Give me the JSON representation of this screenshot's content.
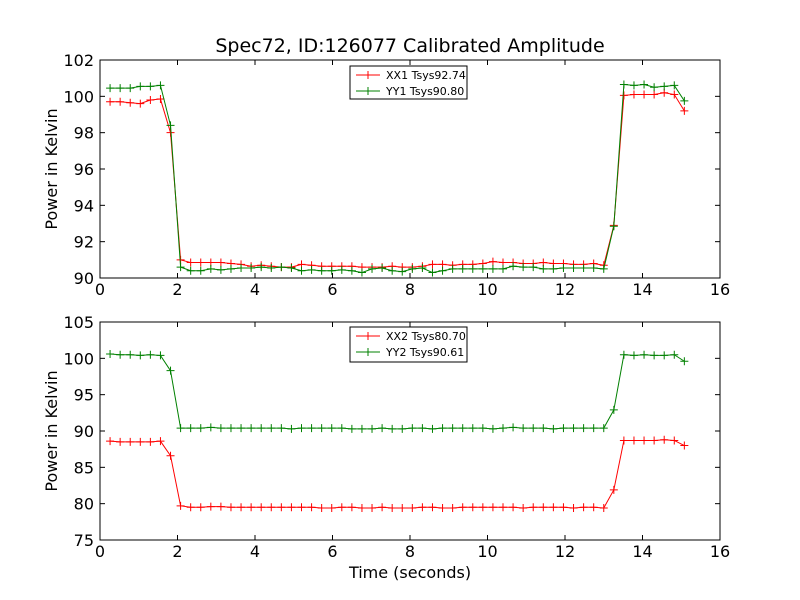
{
  "figure": {
    "title": "Spec72, ID:126077 Calibrated Amplitude"
  },
  "colors": {
    "xx": "#ff0000",
    "yy": "#008000",
    "axes": "#000000",
    "background": "#ffffff"
  },
  "chart_data": [
    {
      "type": "line",
      "title": "Spec72, ID:126077 Calibrated Amplitude",
      "xlabel": "",
      "ylabel": "Power in Kelvin",
      "xlim": [
        0,
        16
      ],
      "ylim": [
        90,
        102
      ],
      "xticks": [
        "0",
        "2",
        "4",
        "6",
        "8",
        "10",
        "12",
        "14",
        "16"
      ],
      "yticks": [
        "90",
        "92",
        "94",
        "96",
        "98",
        "100",
        "102"
      ],
      "grid": false,
      "legend_position": "upper-center",
      "x": [
        0.26,
        0.52,
        0.78,
        1.04,
        1.3,
        1.56,
        1.82,
        2.08,
        2.34,
        2.6,
        2.86,
        3.12,
        3.38,
        3.64,
        3.9,
        4.16,
        4.42,
        4.68,
        4.94,
        5.2,
        5.46,
        5.72,
        5.98,
        6.24,
        6.5,
        6.76,
        7.02,
        7.28,
        7.54,
        7.8,
        8.06,
        8.32,
        8.58,
        8.84,
        9.1,
        9.36,
        9.62,
        9.88,
        10.14,
        10.4,
        10.66,
        10.92,
        11.18,
        11.44,
        11.7,
        11.96,
        12.22,
        12.48,
        12.74,
        13.0,
        13.26,
        13.52,
        13.78,
        14.04,
        14.3,
        14.56,
        14.82,
        15.08
      ],
      "series": [
        {
          "name": "XX1 Tsys92.74",
          "color": "#ff0000",
          "values": [
            99.7,
            99.7,
            99.65,
            99.6,
            99.8,
            99.85,
            98.0,
            91.0,
            90.85,
            90.85,
            90.85,
            90.85,
            90.8,
            90.75,
            90.65,
            90.7,
            90.65,
            90.6,
            90.6,
            90.75,
            90.7,
            90.65,
            90.65,
            90.65,
            90.65,
            90.6,
            90.6,
            90.6,
            90.65,
            90.6,
            90.6,
            90.65,
            90.75,
            90.75,
            90.7,
            90.75,
            90.75,
            90.8,
            90.9,
            90.85,
            90.85,
            90.8,
            90.8,
            90.85,
            90.8,
            90.8,
            90.75,
            90.75,
            90.8,
            90.7,
            92.9,
            100.05,
            100.1,
            100.1,
            100.1,
            100.2,
            100.1,
            99.2
          ]
        },
        {
          "name": "YY1 Tsys90.80",
          "color": "#008000",
          "values": [
            100.45,
            100.45,
            100.45,
            100.55,
            100.55,
            100.6,
            98.4,
            90.6,
            90.4,
            90.4,
            90.5,
            90.45,
            90.5,
            90.55,
            90.55,
            90.6,
            90.55,
            90.6,
            90.55,
            90.4,
            90.45,
            90.4,
            90.4,
            90.45,
            90.4,
            90.3,
            90.5,
            90.55,
            90.4,
            90.35,
            90.5,
            90.55,
            90.3,
            90.4,
            90.5,
            90.5,
            90.5,
            90.5,
            90.5,
            90.5,
            90.65,
            90.6,
            90.6,
            90.5,
            90.5,
            90.55,
            90.55,
            90.55,
            90.55,
            90.5,
            92.85,
            100.65,
            100.6,
            100.65,
            100.5,
            100.55,
            100.6,
            99.75
          ]
        }
      ]
    },
    {
      "type": "line",
      "title": "",
      "xlabel": "Time (seconds)",
      "ylabel": "Power in Kelvin",
      "xlim": [
        0,
        16
      ],
      "ylim": [
        75,
        105
      ],
      "xticks": [
        "0",
        "2",
        "4",
        "6",
        "8",
        "10",
        "12",
        "14",
        "16"
      ],
      "yticks": [
        "75",
        "80",
        "85",
        "90",
        "95",
        "100",
        "105"
      ],
      "grid": false,
      "legend_position": "upper-center",
      "x": [
        0.26,
        0.52,
        0.78,
        1.04,
        1.3,
        1.56,
        1.82,
        2.08,
        2.34,
        2.6,
        2.86,
        3.12,
        3.38,
        3.64,
        3.9,
        4.16,
        4.42,
        4.68,
        4.94,
        5.2,
        5.46,
        5.72,
        5.98,
        6.24,
        6.5,
        6.76,
        7.02,
        7.28,
        7.54,
        7.8,
        8.06,
        8.32,
        8.58,
        8.84,
        9.1,
        9.36,
        9.62,
        9.88,
        10.14,
        10.4,
        10.66,
        10.92,
        11.18,
        11.44,
        11.7,
        11.96,
        12.22,
        12.48,
        12.74,
        13.0,
        13.26,
        13.52,
        13.78,
        14.04,
        14.3,
        14.56,
        14.82,
        15.08
      ],
      "series": [
        {
          "name": "XX2 Tsys80.70",
          "color": "#ff0000",
          "values": [
            88.6,
            88.5,
            88.5,
            88.5,
            88.5,
            88.6,
            86.6,
            79.7,
            79.5,
            79.5,
            79.6,
            79.6,
            79.5,
            79.5,
            79.5,
            79.5,
            79.5,
            79.5,
            79.5,
            79.5,
            79.5,
            79.4,
            79.4,
            79.5,
            79.5,
            79.4,
            79.4,
            79.5,
            79.4,
            79.4,
            79.4,
            79.5,
            79.5,
            79.4,
            79.4,
            79.5,
            79.5,
            79.5,
            79.5,
            79.5,
            79.5,
            79.4,
            79.5,
            79.5,
            79.5,
            79.5,
            79.4,
            79.5,
            79.5,
            79.4,
            81.9,
            88.7,
            88.7,
            88.7,
            88.7,
            88.8,
            88.7,
            88.0
          ]
        },
        {
          "name": "YY2 Tsys90.61",
          "color": "#008000",
          "values": [
            100.6,
            100.5,
            100.5,
            100.4,
            100.5,
            100.4,
            98.3,
            90.4,
            90.4,
            90.4,
            90.5,
            90.4,
            90.4,
            90.4,
            90.4,
            90.4,
            90.4,
            90.4,
            90.3,
            90.4,
            90.4,
            90.4,
            90.4,
            90.4,
            90.3,
            90.3,
            90.3,
            90.4,
            90.3,
            90.3,
            90.4,
            90.4,
            90.3,
            90.4,
            90.4,
            90.4,
            90.4,
            90.4,
            90.3,
            90.4,
            90.5,
            90.4,
            90.4,
            90.4,
            90.3,
            90.4,
            90.4,
            90.4,
            90.4,
            90.4,
            92.9,
            100.5,
            100.4,
            100.5,
            100.4,
            100.4,
            100.5,
            99.6
          ]
        }
      ]
    }
  ]
}
